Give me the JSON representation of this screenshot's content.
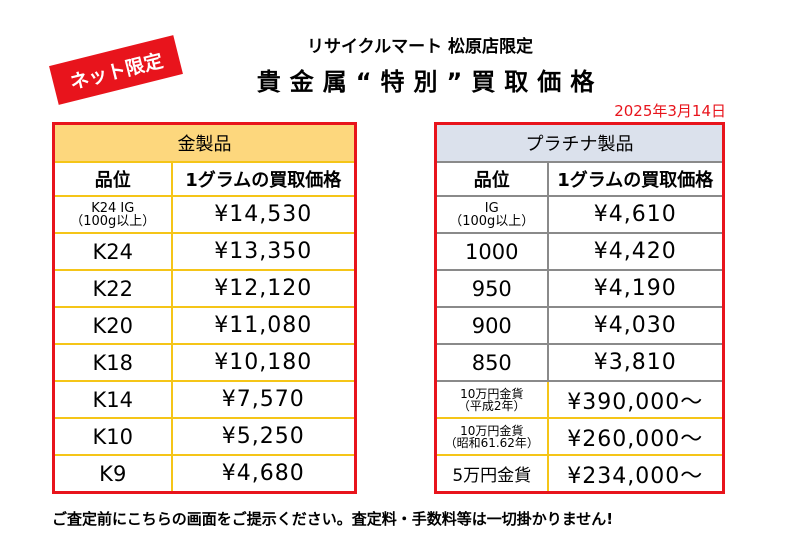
{
  "badge": "ネット限定",
  "store_line": "リサイクルマート 松原店限定",
  "title": "貴金属“特別”買取価格",
  "date": "2025年3月14日",
  "gold": {
    "caption": "金製品",
    "col_grade": "品位",
    "col_price": "1グラムの買取価格",
    "rows": [
      {
        "grade_line1": "K24 IG",
        "grade_line2": "（100g以上）",
        "price": "¥14,530"
      },
      {
        "grade": "K24",
        "price": "¥13,350"
      },
      {
        "grade": "K22",
        "price": "¥12,120"
      },
      {
        "grade": "K20",
        "price": "¥11,080"
      },
      {
        "grade": "K18",
        "price": "¥10,180"
      },
      {
        "grade": "K14",
        "price": "¥7,570"
      },
      {
        "grade": "K10",
        "price": "¥5,250"
      },
      {
        "grade": "K9",
        "price": "¥4,680"
      }
    ]
  },
  "platinum": {
    "caption": "プラチナ製品",
    "col_grade": "品位",
    "col_price": "1グラムの買取価格",
    "rows": [
      {
        "grade_line1": "IG",
        "grade_line2": "（100g以上）",
        "price": "¥4,610"
      },
      {
        "grade": "1000",
        "price": "¥4,420"
      },
      {
        "grade": "950",
        "price": "¥4,190"
      },
      {
        "grade": "900",
        "price": "¥4,030"
      },
      {
        "grade": "850",
        "price": "¥3,810"
      },
      {
        "grade_line1": "10万円金貨",
        "grade_line2": "（平成2年）",
        "price": "¥390,000〜"
      },
      {
        "grade_line1": "10万円金貨",
        "grade_line2": "（昭和61.62年）",
        "price": "¥260,000〜"
      },
      {
        "grade": "5万円金貨",
        "price": "¥234,000〜"
      }
    ]
  },
  "footnote": "ご査定前にこちらの画面をご提示ください。査定料・手数料等は一切掛かりません!"
}
